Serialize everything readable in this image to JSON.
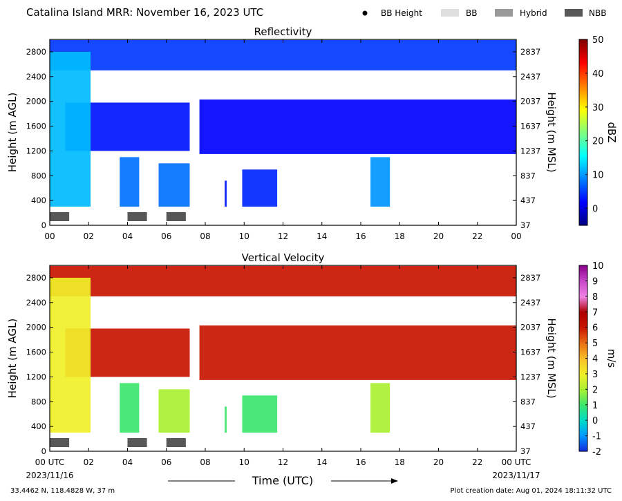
{
  "header": {
    "title": "Catalina Island MRR:  November 16, 2023 UTC",
    "legend": [
      {
        "label": "BB Height",
        "kind": "dot",
        "color": "#000000"
      },
      {
        "label": "BB",
        "kind": "box",
        "color": "#dedede"
      },
      {
        "label": "Hybrid",
        "kind": "box",
        "color": "#999999"
      },
      {
        "label": "NBB",
        "kind": "box",
        "color": "#575757"
      }
    ]
  },
  "footer": {
    "location": "33.4462 N, 118.4828 W, 37 m",
    "creation": "Plot creation date: Aug 01, 2024 18:11:32 UTC",
    "start_date": "2023/11/16",
    "end_date": "2023/11/17",
    "xlabel": "Time (UTC)"
  },
  "chart_data": [
    {
      "type": "heatmap",
      "title": "Reflectivity",
      "ylabel": "Height (m AGL)",
      "ylabel_right": "Height (m MSL)",
      "xlim": [
        0,
        24
      ],
      "ylim": [
        0,
        3000
      ],
      "xticklabels": [
        "00",
        "02",
        "04",
        "06",
        "08",
        "10",
        "12",
        "14",
        "16",
        "18",
        "20",
        "22",
        "00"
      ],
      "yticks": [
        0,
        400,
        800,
        1200,
        1600,
        2000,
        2400,
        2800
      ],
      "yticklabels_right": [
        "37",
        "437",
        "837",
        "1237",
        "1637",
        "2037",
        "2437",
        "2837"
      ],
      "colorbar": {
        "label": "dBZ",
        "min": -5,
        "max": 50,
        "ticks": [
          0,
          10,
          20,
          30,
          40,
          50
        ],
        "colormap": "jet"
      },
      "nbb_periods": [
        [
          0,
          1
        ],
        [
          4,
          5
        ],
        [
          6,
          7
        ]
      ],
      "echo_layers": [
        {
          "t_start": 0,
          "t_end": 24,
          "z_base": 2500,
          "z_top": 2990,
          "value": 5
        },
        {
          "t_start": 0.8,
          "t_end": 7.2,
          "z_base": 1200,
          "z_top": 1980,
          "value": 3
        },
        {
          "t_start": 7.7,
          "t_end": 24,
          "z_base": 1150,
          "z_top": 2030,
          "value": 2
        },
        {
          "t_start": 0,
          "t_end": 2.1,
          "z_base": 300,
          "z_top": 2800,
          "value": 12
        },
        {
          "t_start": 3.6,
          "t_end": 4.6,
          "z_base": 300,
          "z_top": 1100,
          "value": 8
        },
        {
          "t_start": 5.6,
          "t_end": 7.2,
          "z_base": 300,
          "z_top": 1000,
          "value": 8
        },
        {
          "t_start": 9.0,
          "t_end": 9.1,
          "z_base": 300,
          "z_top": 720,
          "value": 3
        },
        {
          "t_start": 9.9,
          "t_end": 11.7,
          "z_base": 300,
          "z_top": 900,
          "value": 4
        },
        {
          "t_start": 16.5,
          "t_end": 17.5,
          "z_base": 300,
          "z_top": 1100,
          "value": 10
        }
      ]
    },
    {
      "type": "heatmap",
      "title": "Vertical Velocity",
      "ylabel": "Height (m AGL)",
      "ylabel_right": "Height (m MSL)",
      "xlim": [
        0,
        24
      ],
      "ylim": [
        0,
        3000
      ],
      "xticklabels": [
        "00 UTC",
        "02",
        "04",
        "06",
        "08",
        "10",
        "12",
        "14",
        "16",
        "18",
        "20",
        "22",
        "00 UTC"
      ],
      "yticks": [
        0,
        400,
        800,
        1200,
        1600,
        2000,
        2400,
        2800
      ],
      "yticklabels_right": [
        "37",
        "437",
        "837",
        "1237",
        "1637",
        "2037",
        "2437",
        "2837"
      ],
      "colorbar": {
        "label": "m/s",
        "min": -2,
        "max": 10,
        "ticks": [
          -2,
          -1,
          0,
          1,
          2,
          3,
          4,
          5,
          6,
          7,
          8,
          9,
          10
        ],
        "colormap": "velocity"
      },
      "nbb_periods": [
        [
          0,
          1
        ],
        [
          4,
          5
        ],
        [
          6,
          7
        ]
      ],
      "echo_layers": [
        {
          "t_start": 0,
          "t_end": 24,
          "z_base": 2500,
          "z_top": 2990,
          "value": 6
        },
        {
          "t_start": 0.8,
          "t_end": 7.2,
          "z_base": 1200,
          "z_top": 1980,
          "value": 6
        },
        {
          "t_start": 7.7,
          "t_end": 24,
          "z_base": 1150,
          "z_top": 2030,
          "value": 6
        },
        {
          "t_start": 0,
          "t_end": 2.1,
          "z_base": 300,
          "z_top": 2800,
          "value": 3
        },
        {
          "t_start": 3.6,
          "t_end": 4.6,
          "z_base": 300,
          "z_top": 1100,
          "value": 1
        },
        {
          "t_start": 5.6,
          "t_end": 7.2,
          "z_base": 300,
          "z_top": 1000,
          "value": 2
        },
        {
          "t_start": 9.0,
          "t_end": 9.1,
          "z_base": 300,
          "z_top": 720,
          "value": 1
        },
        {
          "t_start": 9.9,
          "t_end": 11.7,
          "z_base": 300,
          "z_top": 900,
          "value": 1
        },
        {
          "t_start": 16.5,
          "t_end": 17.5,
          "z_base": 300,
          "z_top": 1100,
          "value": 2
        }
      ]
    }
  ]
}
